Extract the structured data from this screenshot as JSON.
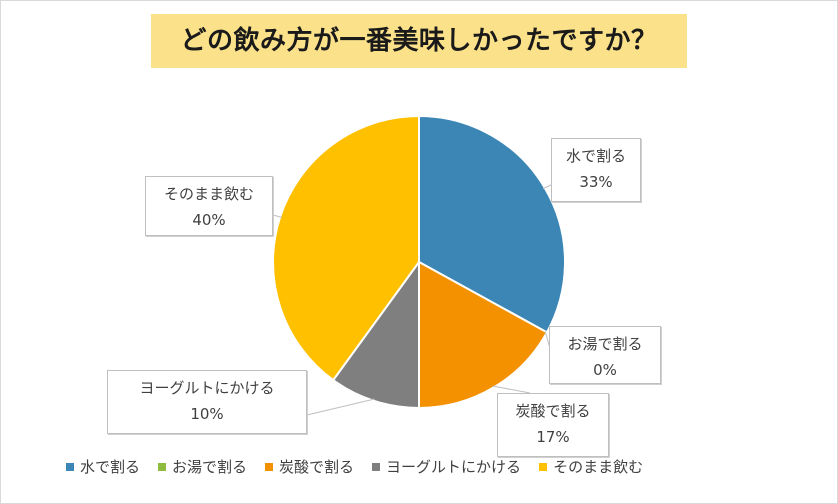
{
  "title": "どの飲み方が一番美味しかったですか？",
  "chart_data": {
    "type": "pie",
    "title": "どの飲み方が一番美味しかったですか？",
    "slices": [
      {
        "label": "水で割る",
        "value": 33,
        "color": "#3b86b4",
        "data_label": "33%"
      },
      {
        "label": "お湯で割る",
        "value": 0,
        "color": "#8fbc3f",
        "data_label": "0%"
      },
      {
        "label": "炭酸で割る",
        "value": 17,
        "color": "#f39100",
        "data_label": "17%"
      },
      {
        "label": "ヨーグルトにかける",
        "value": 10,
        "color": "#7f7f7f",
        "data_label": "10%"
      },
      {
        "label": "そのまま飲む",
        "value": 40,
        "color": "#ffc000",
        "data_label": "40%"
      }
    ],
    "legend_position": "bottom"
  }
}
